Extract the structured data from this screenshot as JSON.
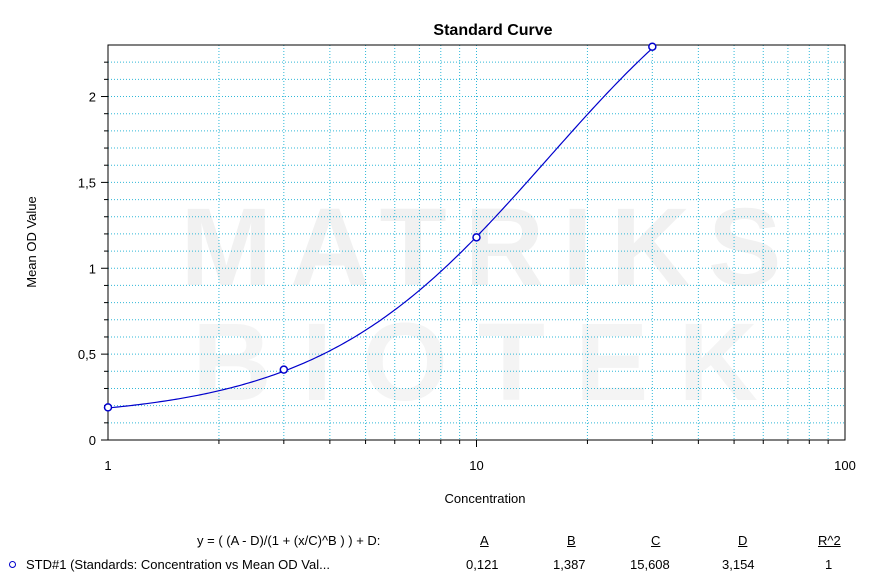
{
  "watermark": {
    "line1": "MATRIKS",
    "line2": "BIOTEK"
  },
  "chart_data": {
    "type": "line",
    "title": "Standard Curve",
    "xlabel": "Concentration",
    "ylabel": "Mean OD Value",
    "x_scale": "log",
    "xlim": [
      1,
      100
    ],
    "ylim": [
      0,
      2.3
    ],
    "x_ticks": [
      "1",
      "10",
      "100"
    ],
    "y_ticks": [
      "0",
      "0,5",
      "1",
      "1,5",
      "2"
    ],
    "grid": true,
    "series": [
      {
        "name": "STD#1 (Standards: Concentration vs Mean OD Val...",
        "color": "#0000cc",
        "points": [
          {
            "x": 1,
            "y": 0.19
          },
          {
            "x": 3,
            "y": 0.41
          },
          {
            "x": 10,
            "y": 1.18
          },
          {
            "x": 30,
            "y": 2.29
          }
        ],
        "fit": {
          "A": 0.121,
          "B": 1.387,
          "C": 15.608,
          "D": 3.154
        }
      }
    ]
  },
  "legend": {
    "equation": "y = ( (A - D)/(1 + (x/C)^B ) ) + D:",
    "headers": [
      "A",
      "B",
      "C",
      "D",
      "R^2"
    ],
    "row": {
      "label": "STD#1 (Standards: Concentration vs Mean OD Val...",
      "values": [
        "0,121",
        "1,387",
        "15,608",
        "3,154",
        "1"
      ]
    }
  }
}
